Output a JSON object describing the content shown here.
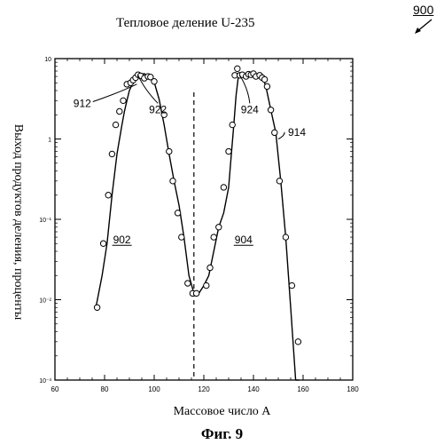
{
  "figure": {
    "ref": "900",
    "caption": "Фиг. 9"
  },
  "chart_data": {
    "type": "line",
    "title": "Тепловое деление U-235",
    "xlabel": "Массовое число A",
    "ylabel": "Выход продуктов деления, проценты",
    "xlim": [
      60,
      180
    ],
    "xticks": [
      60,
      80,
      100,
      120,
      140,
      160,
      180
    ],
    "ylog": true,
    "ylim": [
      0.001,
      10
    ],
    "yticks": [
      {
        "value": 10,
        "label": "10"
      },
      {
        "value": 1,
        "label": "1"
      },
      {
        "value": 0.1,
        "label": "10⁻¹"
      },
      {
        "value": 0.01,
        "label": "10⁻²"
      },
      {
        "value": 0.001,
        "label": "10⁻³"
      }
    ],
    "grid": false,
    "series": [
      {
        "x": [
          76.5,
          79,
          81,
          83,
          85,
          87,
          88,
          89,
          90,
          91,
          92,
          93,
          94,
          95,
          96,
          97,
          98,
          99,
          100,
          102,
          104,
          106,
          108,
          110,
          112,
          114,
          116,
          118,
          120,
          122,
          124,
          126,
          128,
          130,
          131,
          132,
          133,
          134,
          135,
          136,
          137,
          138,
          139,
          140,
          141,
          142,
          143,
          144,
          145,
          147,
          149,
          151,
          153,
          155,
          157
        ],
        "y": [
          0.008,
          0.02,
          0.05,
          0.2,
          0.65,
          1.5,
          2.2,
          3.0,
          4.0,
          4.7,
          5.3,
          5.8,
          6.3,
          6.4,
          6.5,
          6.2,
          6.0,
          5.7,
          5.1,
          3.1,
          1.5,
          0.65,
          0.3,
          0.15,
          0.06,
          0.02,
          0.012,
          0.012,
          0.015,
          0.02,
          0.04,
          0.08,
          0.12,
          0.25,
          0.6,
          1.4,
          3.5,
          6.3,
          6.0,
          5.9,
          6.0,
          6.4,
          6.5,
          6.2,
          6.0,
          6.3,
          5.8,
          5.5,
          4.5,
          2.3,
          1.2,
          0.3,
          0.06,
          0.008,
          0.001
        ],
        "markers": [
          [
            77,
            0.008
          ],
          [
            79.5,
            0.05
          ],
          [
            81.5,
            0.2
          ],
          [
            83,
            0.65
          ],
          [
            84.5,
            1.5
          ],
          [
            86,
            2.2
          ],
          [
            87.5,
            3.0
          ],
          [
            89,
            4.8
          ],
          [
            90.5,
            5.0
          ],
          [
            91.5,
            5.4
          ],
          [
            92.5,
            5.8
          ],
          [
            93.5,
            6.3
          ],
          [
            94.5,
            6.1
          ],
          [
            96,
            5.7
          ],
          [
            97.5,
            6.0
          ],
          [
            98.5,
            5.9
          ],
          [
            100,
            5.2
          ],
          [
            104,
            2.0
          ],
          [
            106,
            0.7
          ],
          [
            107.5,
            0.3
          ],
          [
            109.5,
            0.12
          ],
          [
            111,
            0.06
          ],
          [
            113.5,
            0.016
          ],
          [
            115.5,
            0.012
          ],
          [
            117,
            0.012
          ],
          [
            121,
            0.015
          ],
          [
            122.5,
            0.025
          ],
          [
            124,
            0.06
          ],
          [
            126,
            0.08
          ],
          [
            128,
            0.25
          ],
          [
            130,
            0.7
          ],
          [
            131.5,
            1.5
          ],
          [
            132.5,
            6.2
          ],
          [
            133.5,
            7.5
          ],
          [
            134.5,
            6.2
          ],
          [
            135.5,
            6.3
          ],
          [
            137,
            6.0
          ],
          [
            138,
            6.4
          ],
          [
            139,
            6.3
          ],
          [
            140,
            6.5
          ],
          [
            141,
            6.0
          ],
          [
            142.5,
            6.2
          ],
          [
            143.5,
            5.8
          ],
          [
            144.5,
            5.5
          ],
          [
            145.5,
            4.5
          ],
          [
            147,
            2.3
          ],
          [
            148.5,
            1.2
          ],
          [
            150.5,
            0.3
          ],
          [
            153,
            0.06
          ],
          [
            155.5,
            0.015
          ],
          [
            158,
            0.003
          ]
        ]
      }
    ],
    "vline": {
      "x": 116,
      "style": "dashed"
    },
    "annotations": [
      {
        "label": "912",
        "at": [
          93,
          4.8
        ],
        "text_pos": [
          71,
          2.5
        ],
        "underline": false
      },
      {
        "label": "922",
        "at": [
          93.5,
          6.2
        ],
        "text_pos": [
          101.5,
          2.1
        ],
        "underline": false
      },
      {
        "label": "924",
        "at": [
          134.5,
          6.2
        ],
        "text_pos": [
          138.5,
          2.1
        ],
        "underline": false
      },
      {
        "label": "914",
        "at": [
          150,
          1.0
        ],
        "text_pos": [
          157.5,
          1.1
        ],
        "underline": false
      },
      {
        "label": "902",
        "at": null,
        "text_pos": [
          87,
          0.05
        ],
        "underline": true
      },
      {
        "label": "904",
        "at": null,
        "text_pos": [
          136,
          0.05
        ],
        "underline": true
      }
    ]
  }
}
